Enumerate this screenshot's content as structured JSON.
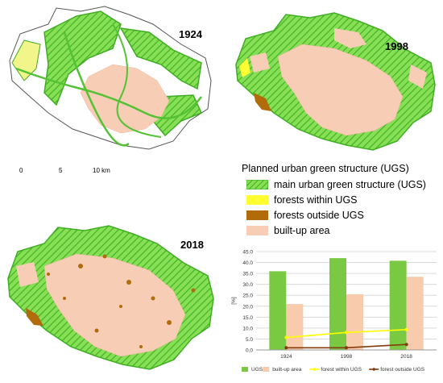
{
  "maps": [
    {
      "year": "1924"
    },
    {
      "year": "1998"
    },
    {
      "year": "2018"
    }
  ],
  "scale_bar": {
    "ticks": [
      "0",
      "5",
      "10 km"
    ]
  },
  "legend": {
    "title": "Planned urban green structure (UGS)",
    "items": [
      {
        "label": "main urban green structure (UGS)",
        "color": "#7ddc4a",
        "pattern": "hatched"
      },
      {
        "label": "forests within UGS",
        "color": "#ffff33"
      },
      {
        "label": "forests outside UGS",
        "color": "#b26b0a"
      },
      {
        "label": "built-up area",
        "color": "#f7cdb5"
      }
    ]
  },
  "colors": {
    "ugs": "#7ddc4a",
    "ugs_hatch": "#3fae22",
    "forest_within": "#ffff33",
    "forest_outside": "#b26b0a",
    "built_up": "#f7cdb5",
    "outline": "#555555"
  },
  "chart_data": {
    "type": "bar",
    "categories": [
      "1924",
      "1998",
      "2018"
    ],
    "ylabel": "[%]",
    "ylim": [
      0,
      45
    ],
    "yticks": [
      "0.0",
      "5.0",
      "10.0",
      "15.0",
      "20.0",
      "25.0",
      "30.0",
      "35.0",
      "40.0",
      "45.0"
    ],
    "grid": true,
    "legend_position": "bottom",
    "series": [
      {
        "name": "UGS",
        "kind": "bar",
        "color": "#7ac943",
        "values": [
          36.0,
          42.0,
          40.8
        ]
      },
      {
        "name": "built-up area",
        "kind": "bar",
        "color": "#f8cbad",
        "values": [
          21.0,
          25.5,
          33.5
        ]
      },
      {
        "name": "forest within UGS",
        "kind": "line",
        "color": "#ffff00",
        "values": [
          5.7,
          8.0,
          9.3
        ]
      },
      {
        "name": "forest outside UGS",
        "kind": "line",
        "color": "#843c0c",
        "values": [
          1.0,
          1.0,
          2.5
        ]
      }
    ]
  }
}
